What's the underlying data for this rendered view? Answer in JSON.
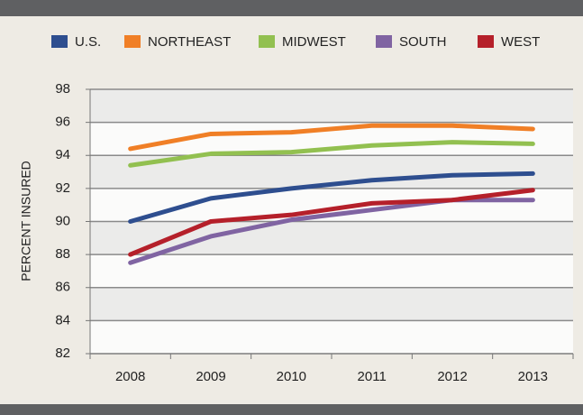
{
  "chart_data": {
    "type": "line",
    "y_label": "PERCENT INSURED",
    "categories": [
      "2008",
      "2009",
      "2010",
      "2011",
      "2012",
      "2013"
    ],
    "series": [
      {
        "name": "U.S.",
        "color": "#2e4e8f",
        "values": [
          90.0,
          91.4,
          92.0,
          92.5,
          92.8,
          92.9
        ]
      },
      {
        "name": "NORTHEAST",
        "color": "#f07f26",
        "values": [
          94.4,
          95.3,
          95.4,
          95.8,
          95.8,
          95.6
        ]
      },
      {
        "name": "MIDWEST",
        "color": "#92c050",
        "values": [
          93.4,
          94.1,
          94.2,
          94.6,
          94.8,
          94.7
        ]
      },
      {
        "name": "SOUTH",
        "color": "#8064a2",
        "values": [
          87.5,
          89.1,
          90.1,
          90.7,
          91.3,
          91.3
        ]
      },
      {
        "name": "WEST",
        "color": "#b5202a",
        "values": [
          88.0,
          90.0,
          90.4,
          91.1,
          91.3,
          91.9
        ]
      }
    ],
    "ylim": [
      82,
      98
    ],
    "yticks": [
      82,
      84,
      86,
      88,
      90,
      92,
      94,
      96,
      98
    ],
    "grid": true,
    "legend": "top"
  }
}
